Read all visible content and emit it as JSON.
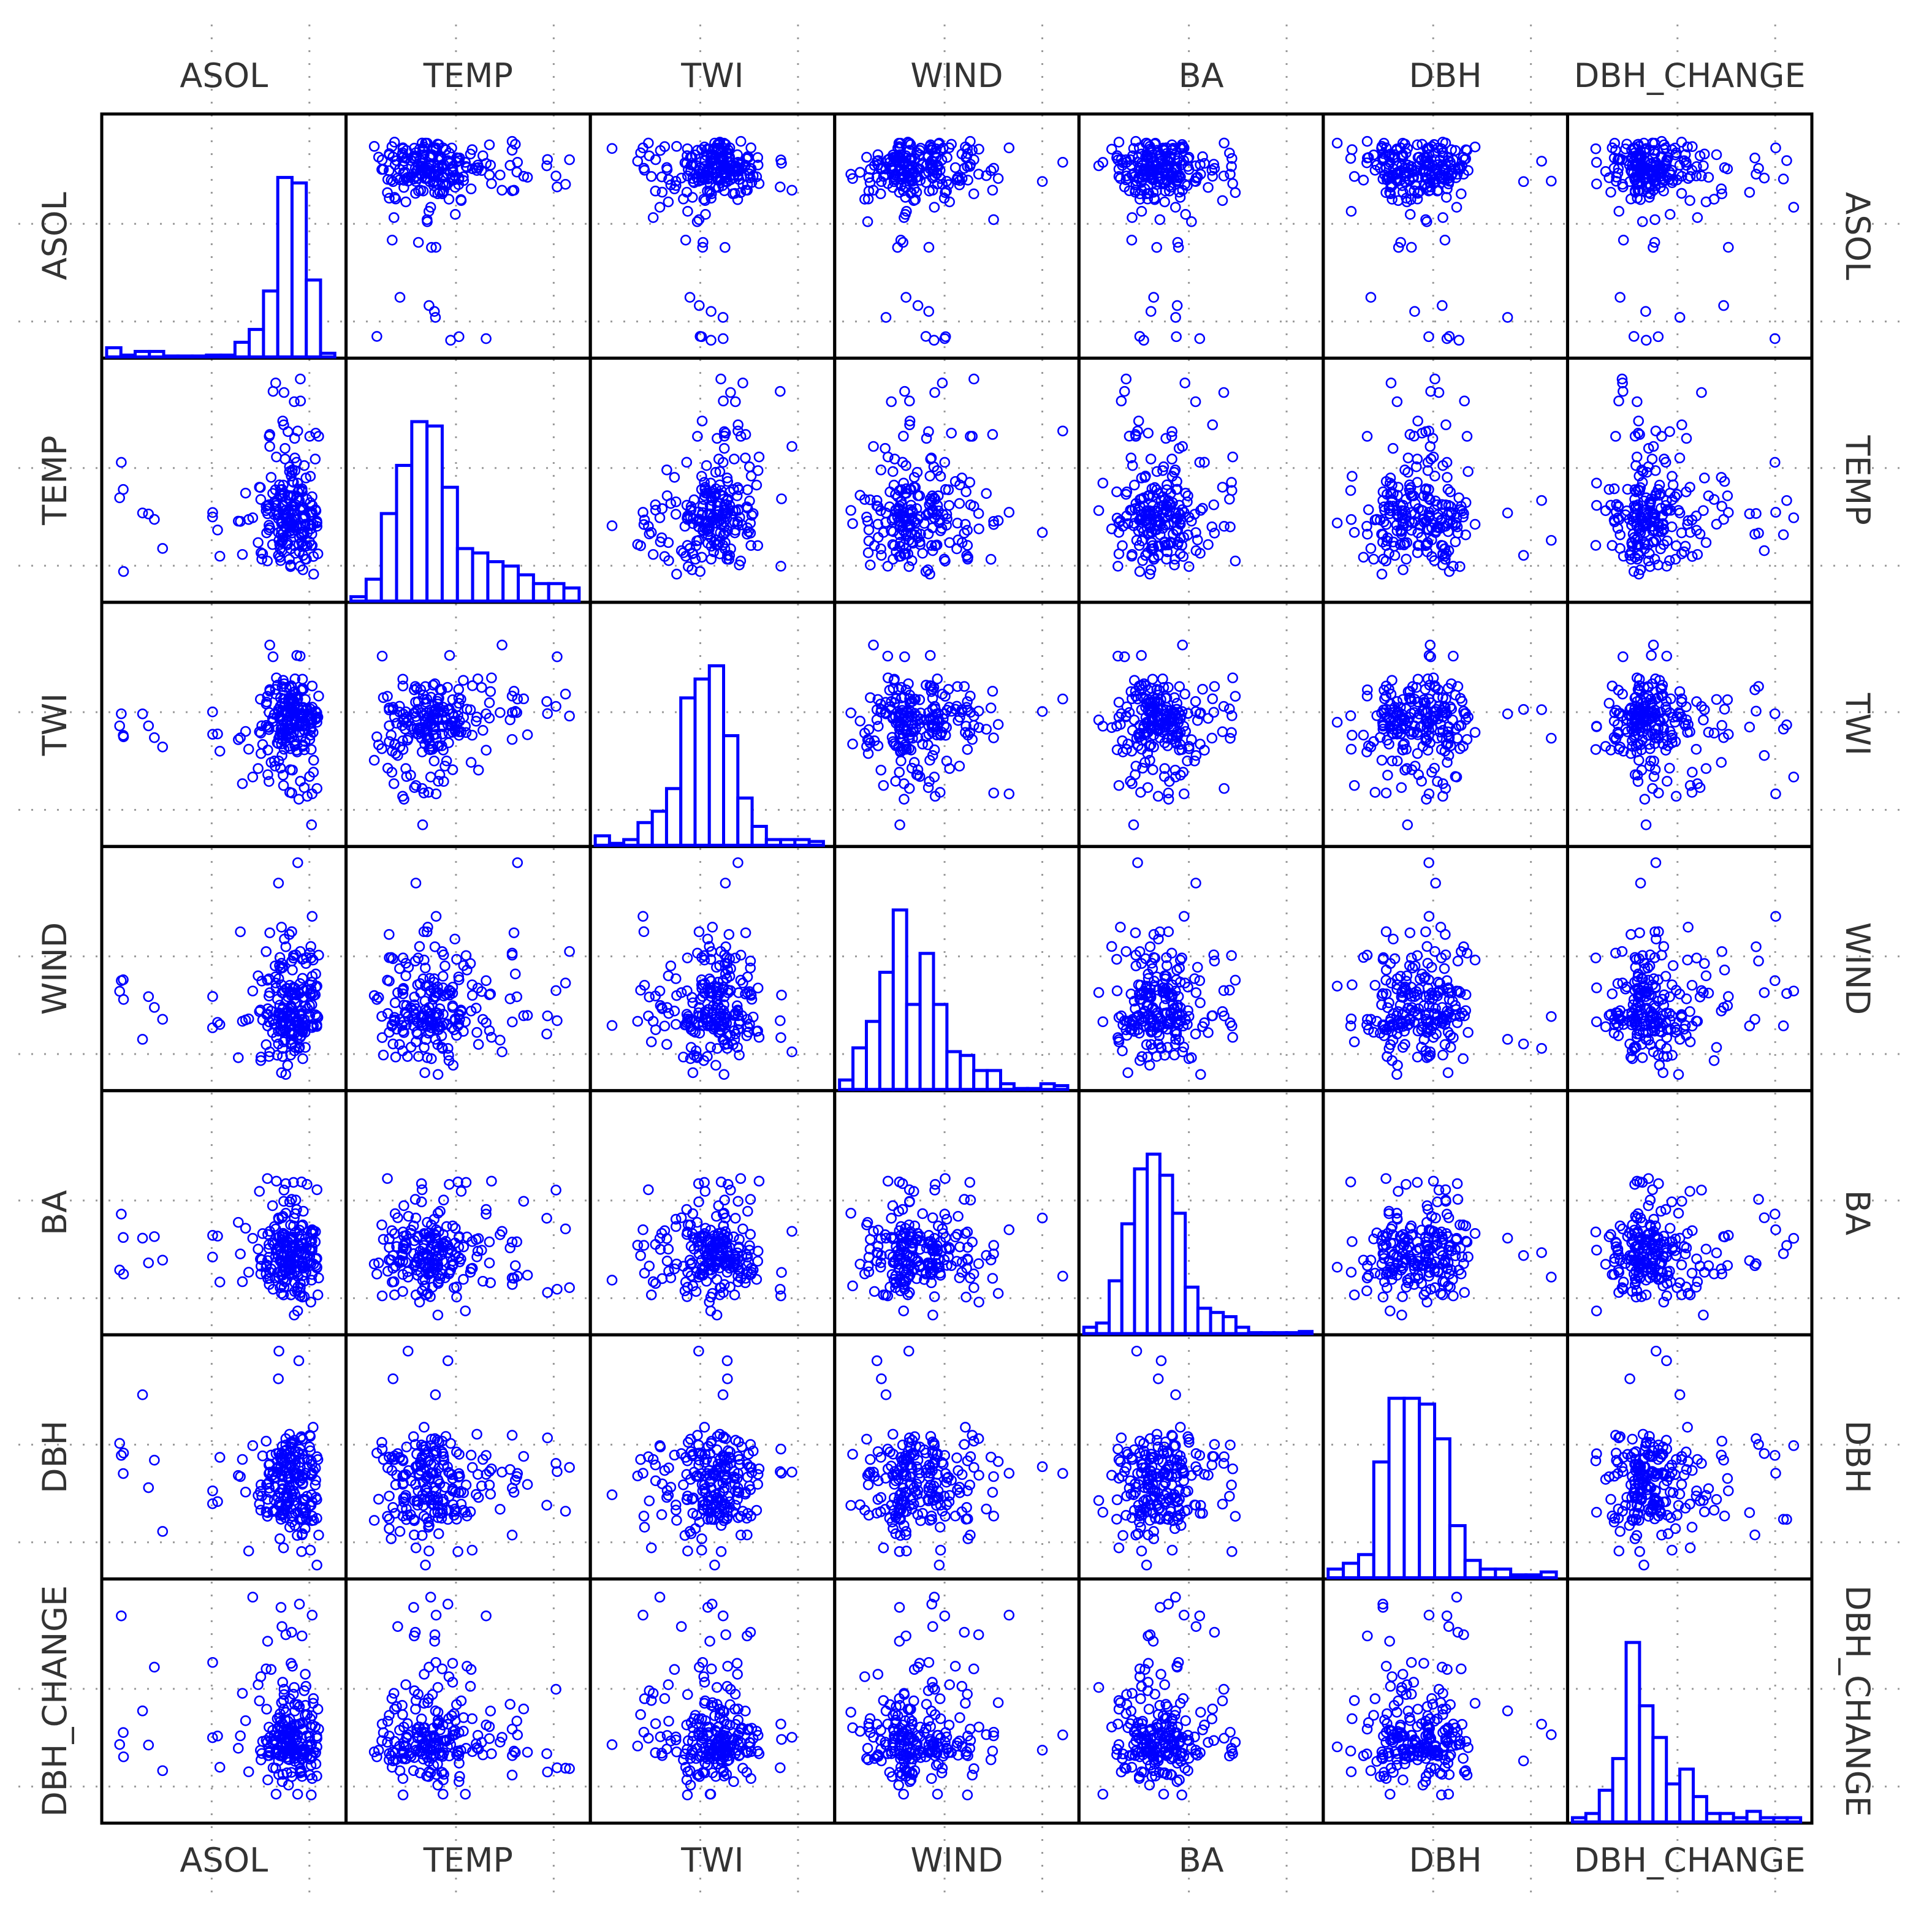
{
  "chart_data": {
    "type": "scatter",
    "layout": "scatterplot-matrix",
    "title": "",
    "diagonal": "histogram",
    "variables": [
      "ASOL",
      "TEMP",
      "TWI",
      "WIND",
      "BA",
      "DBH",
      "DBH_CHANGE"
    ],
    "grid": true,
    "point_marker": "open-circle",
    "colors": {
      "marker": "#0000ff",
      "frame": "#000000",
      "grid": "#9a9a9a",
      "label": "#333333",
      "background": "#ffffff"
    },
    "ranges": [
      [
        0,
        1
      ],
      [
        0,
        1
      ],
      [
        0,
        1
      ],
      [
        0,
        1
      ],
      [
        0,
        1
      ],
      [
        0,
        1
      ],
      [
        0,
        1
      ]
    ],
    "histograms": [
      {
        "variable": "ASOL",
        "range": [
          0,
          1
        ],
        "counts": [
          5,
          1,
          3,
          3,
          0,
          0,
          0,
          1,
          1,
          8,
          15,
          36,
          98,
          95,
          42,
          2
        ]
      },
      {
        "variable": "TEMP",
        "range": [
          0,
          1
        ],
        "counts": [
          2,
          10,
          40,
          62,
          82,
          80,
          52,
          24,
          22,
          18,
          16,
          12,
          8,
          8,
          6
        ]
      },
      {
        "variable": "TWI",
        "range": [
          0,
          1
        ],
        "counts": [
          5,
          1,
          3,
          12,
          18,
          30,
          78,
          88,
          95,
          58,
          25,
          10,
          3,
          3,
          3,
          2
        ]
      },
      {
        "variable": "WIND",
        "range": [
          0,
          1
        ],
        "counts": [
          5,
          22,
          36,
          62,
          95,
          45,
          72,
          45,
          20,
          18,
          10,
          10,
          3,
          0,
          0,
          3,
          2
        ]
      },
      {
        "variable": "BA",
        "range": [
          0,
          1
        ],
        "counts": [
          3,
          5,
          25,
          52,
          78,
          85,
          75,
          57,
          22,
          12,
          10,
          8,
          3,
          0,
          0,
          0,
          0,
          1
        ]
      },
      {
        "variable": "DBH",
        "range": [
          0,
          1
        ],
        "counts": [
          3,
          5,
          8,
          40,
          62,
          62,
          60,
          48,
          18,
          6,
          3,
          3,
          1,
          1,
          2
        ]
      },
      {
        "variable": "DBH_CHANGE",
        "range": [
          0,
          1
        ],
        "counts": [
          2,
          4,
          15,
          30,
          85,
          55,
          40,
          18,
          25,
          12,
          4,
          4,
          2,
          5,
          2,
          2,
          2
        ]
      }
    ]
  }
}
